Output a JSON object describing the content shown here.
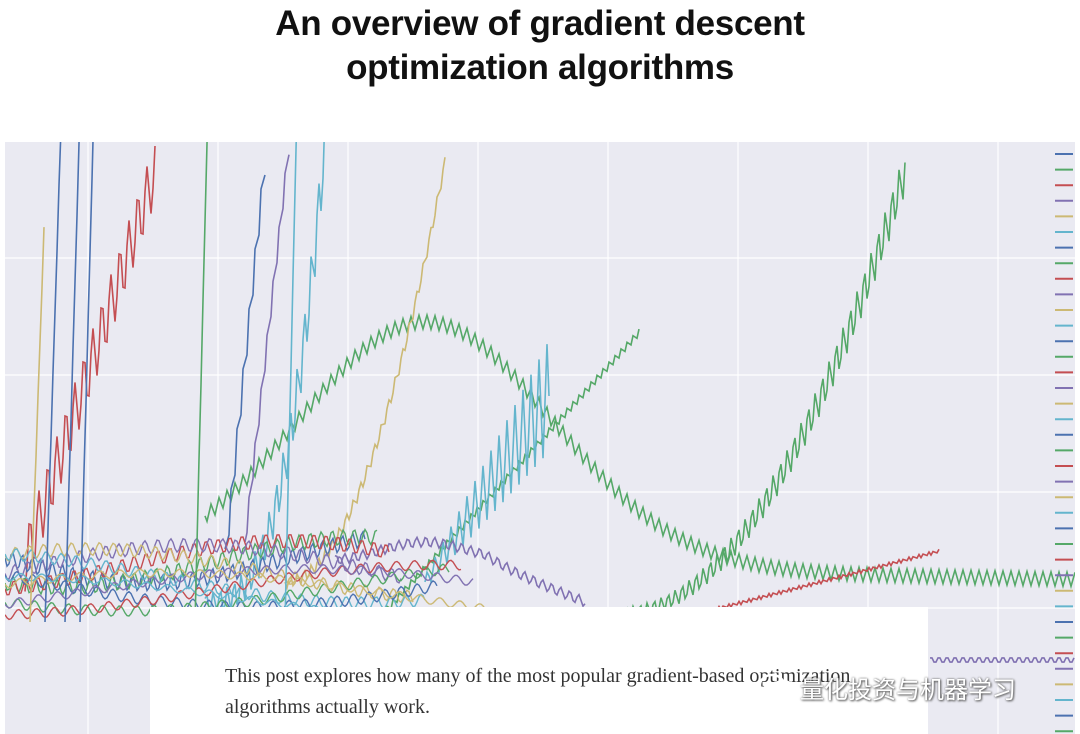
{
  "header": {
    "title": "An overview of gradient descent optimization algorithms"
  },
  "hero": {
    "description": "This post explores how many of the most popular gradient-based optimization algorithms actually work.",
    "watermark": "量化投资与机器学习"
  }
}
